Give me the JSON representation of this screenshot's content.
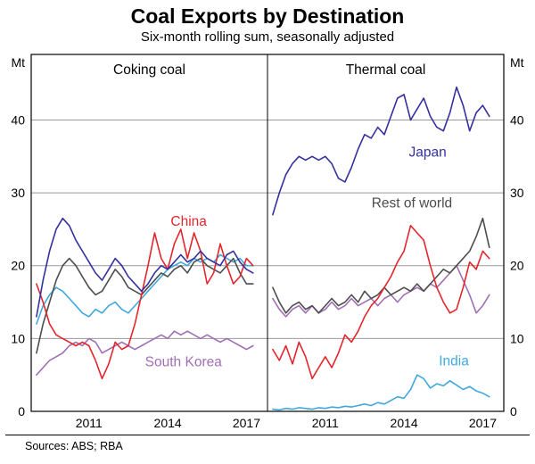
{
  "page": {
    "title": "Coal Exports by Destination",
    "subtitle": "Six-month rolling sum, seasonally adjusted",
    "sources": "Sources: ABS; RBA"
  },
  "chart_data": {
    "type": "line",
    "title": "Coal Exports by Destination",
    "subtitle": "Six-month rolling sum, seasonally adjusted",
    "unit": "Mt",
    "ylim": [
      0,
      49
    ],
    "yticks": [
      0,
      10,
      20,
      30,
      40
    ],
    "xlim": [
      2008.8,
      2017.8
    ],
    "xticks": [
      2011,
      2014,
      2017
    ],
    "grid": "horizontal",
    "x": [
      2009.0,
      2009.25,
      2009.5,
      2009.75,
      2010.0,
      2010.25,
      2010.5,
      2010.75,
      2011.0,
      2011.25,
      2011.5,
      2011.75,
      2012.0,
      2012.25,
      2012.5,
      2012.75,
      2013.0,
      2013.25,
      2013.5,
      2013.75,
      2014.0,
      2014.25,
      2014.5,
      2014.75,
      2015.0,
      2015.25,
      2015.5,
      2015.75,
      2016.0,
      2016.25,
      2016.5,
      2016.75,
      2017.0,
      2017.25
    ],
    "panels": [
      {
        "name": "Coking coal",
        "series": [
          {
            "name": "South Korea",
            "color": "#a06fb4",
            "label": {
              "x": 2014.6,
              "y": 6.2
            },
            "values": [
              5,
              6,
              7,
              7.5,
              8,
              9,
              9.5,
              9,
              10,
              9.5,
              8,
              8.5,
              9,
              9.5,
              9,
              8.5,
              9,
              9.5,
              10,
              10.5,
              10,
              11,
              10.5,
              11,
              10.5,
              10,
              10.5,
              10,
              9.5,
              10,
              9.5,
              9,
              8.5,
              9
            ]
          },
          {
            "name": "India",
            "color": "#3fa9dc",
            "label": null,
            "values": [
              12,
              14.5,
              16,
              17,
              16.5,
              15.5,
              14.5,
              13.5,
              13,
              14,
              13.5,
              14.5,
              15,
              14,
              13.5,
              14.5,
              15.5,
              16.5,
              17.5,
              18.5,
              19.5,
              20,
              20.5,
              20,
              21,
              20.5,
              21,
              20.5,
              21.5,
              21,
              20.5,
              21,
              20,
              20
            ]
          },
          {
            "name": "Rest of world",
            "color": "#4d4d4d",
            "label": null,
            "values": [
              8,
              12,
              15,
              18,
              20,
              21,
              20,
              18.5,
              17,
              16,
              16.5,
              18,
              19.5,
              18.5,
              17,
              16.5,
              16,
              17,
              18,
              19,
              18.5,
              19.5,
              20,
              19,
              20.5,
              21,
              20,
              19.5,
              19,
              20,
              21,
              19,
              17.5,
              17.5
            ]
          },
          {
            "name": "China",
            "color": "#e4262c",
            "label": {
              "x": 2014.8,
              "y": 25.5
            },
            "values": [
              17.5,
              15,
              12,
              10.5,
              10,
              9.5,
              9,
              9.5,
              9,
              7,
              4.5,
              6.5,
              9.5,
              8.5,
              9,
              12,
              16,
              20,
              24.5,
              21,
              19.5,
              23,
              25,
              21,
              24.5,
              22,
              17.5,
              19,
              23,
              20,
              17.5,
              18.5,
              21,
              20
            ]
          },
          {
            "name": "Japan",
            "color": "#35309f",
            "label": null,
            "values": [
              13,
              18,
              22,
              25,
              26.5,
              25.5,
              23.5,
              22,
              20.5,
              19,
              18,
              19.5,
              21,
              20,
              18.5,
              17.5,
              16.5,
              17.5,
              19,
              20,
              19.5,
              20.5,
              21.5,
              20.5,
              21,
              22,
              21,
              20.5,
              20,
              21.5,
              22,
              20.5,
              19.5,
              19
            ]
          }
        ]
      },
      {
        "name": "Thermal coal",
        "series": [
          {
            "name": "South Korea",
            "color": "#a06fb4",
            "label": null,
            "values": [
              15.5,
              14,
              13,
              14,
              14.5,
              13.5,
              14.5,
              13.5,
              14,
              15,
              14,
              14.5,
              15.5,
              14.5,
              15,
              15.5,
              14.5,
              15.5,
              16,
              15,
              16,
              16.5,
              17,
              16.5,
              17.5,
              17,
              18,
              19,
              20,
              18,
              16,
              13.5,
              14.5,
              16
            ]
          },
          {
            "name": "India",
            "color": "#3fa9dc",
            "label": {
              "x": 2015.9,
              "y": 6.3
            },
            "values": [
              0.3,
              0.2,
              0.4,
              0.3,
              0.5,
              0.4,
              0.3,
              0.5,
              0.4,
              0.6,
              0.5,
              0.7,
              0.6,
              0.8,
              1,
              0.8,
              1.2,
              1,
              1.5,
              2,
              1.8,
              3,
              5,
              4.5,
              3.2,
              3.8,
              3.5,
              4.2,
              3.6,
              3,
              3.4,
              2.8,
              2.5,
              2
            ]
          },
          {
            "name": "Rest of world",
            "color": "#4d4d4d",
            "label": {
              "x": 2014.3,
              "y": 28
            },
            "values": [
              17,
              15,
              13.5,
              14.5,
              15,
              14,
              14.5,
              13.5,
              14.5,
              15.5,
              14.5,
              15,
              16,
              15,
              16.5,
              15.5,
              16,
              17,
              16,
              16.5,
              17,
              16.5,
              17.5,
              16.5,
              17.5,
              18.5,
              19.5,
              19,
              20,
              21,
              22,
              24,
              26.5,
              22.5
            ]
          },
          {
            "name": "China",
            "color": "#e4262c",
            "label": null,
            "values": [
              8.5,
              7,
              9,
              6.5,
              9.5,
              7.5,
              4.5,
              6,
              7.5,
              6,
              8,
              10.5,
              9.5,
              11,
              13,
              14.5,
              15.5,
              17,
              18.5,
              20.5,
              22,
              25.5,
              24.5,
              23.5,
              20,
              17,
              15,
              13.5,
              14,
              17,
              20.5,
              19.5,
              22,
              21
            ]
          },
          {
            "name": "Japan",
            "color": "#35309f",
            "label": {
              "x": 2014.9,
              "y": 35
            },
            "values": [
              27,
              30,
              32.5,
              34,
              35,
              34.5,
              35,
              34.5,
              35,
              34,
              32,
              31.5,
              33.5,
              36,
              38,
              37.5,
              39,
              38,
              40.5,
              43,
              43.5,
              40,
              41.5,
              43,
              40.5,
              39,
              38.5,
              41,
              44.5,
              42,
              38.5,
              41,
              42,
              40.5
            ]
          }
        ]
      }
    ]
  }
}
